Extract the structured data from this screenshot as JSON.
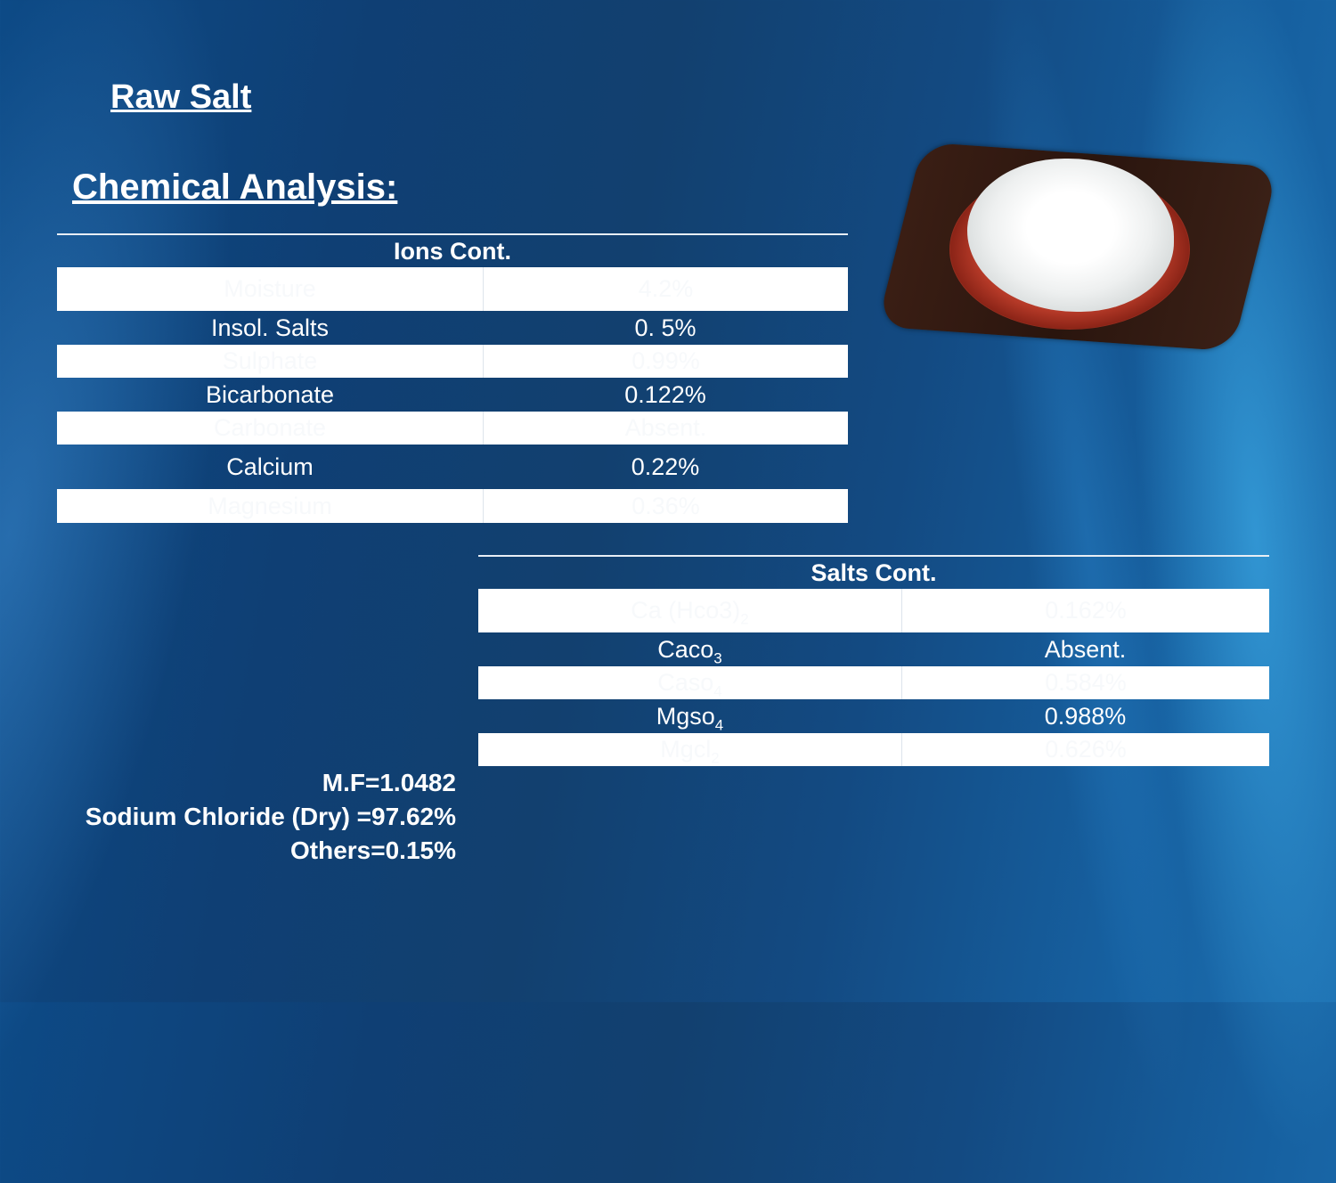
{
  "slide": {
    "title": "Raw Salt",
    "subtitle": "Chemical Analysis:"
  },
  "ions_table": {
    "header": "Ions Cont.",
    "rows": [
      {
        "name": "Moisture",
        "value": "4.2%"
      },
      {
        "name": "Insol. Salts",
        "value": "0. 5%"
      },
      {
        "name": "Sulphate",
        "value": "0.99%"
      },
      {
        "name": "Bicarbonate",
        "value": "0.122%"
      },
      {
        "name": "Carbonate",
        "value": "Absent."
      },
      {
        "name": "Calcium",
        "value": "0.22%"
      },
      {
        "name": "Magnesium",
        "value": "0.36%"
      }
    ]
  },
  "salts_table": {
    "header": "Salts Cont.",
    "rows": [
      {
        "name": "Ca (Hco3)",
        "sub": "2",
        "value": "0.162%"
      },
      {
        "name": "Caco",
        "sub": "3",
        "value": "Absent."
      },
      {
        "name": "Caso",
        "sub": "4",
        "value": "0.584%"
      },
      {
        "name": "Mgso",
        "sub": "4",
        "value": "0.988%"
      },
      {
        "name": "Mgcl",
        "sub": "2",
        "value": "0.626%"
      }
    ]
  },
  "notes": {
    "mf": "M.F=1.0482",
    "nacl": "Sodium Chloride (Dry) =97.62%",
    "others": "Others=0.15%"
  }
}
